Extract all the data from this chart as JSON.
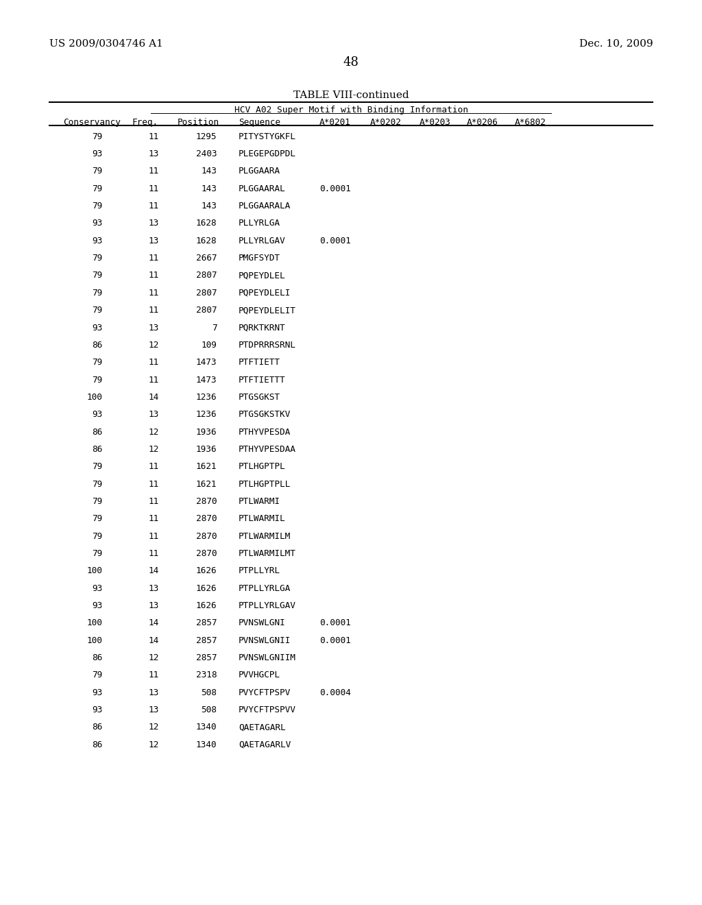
{
  "header_left": "US 2009/0304746 A1",
  "header_right": "Dec. 10, 2009",
  "page_number": "48",
  "table_title": "TABLE VIII-continued",
  "table_subtitle": "HCV A02 Super Motif with Binding Information",
  "col_headers": [
    "Conservancy",
    "Freq.",
    "Position",
    "Sequence",
    "A*0201",
    "A*0202",
    "A*0203",
    "A*0206",
    "A*6802"
  ],
  "rows": [
    [
      "79",
      "11",
      "1295",
      "PITYSTYGKFL",
      "",
      "",
      "",
      "",
      ""
    ],
    [
      "93",
      "13",
      "2403",
      "PLEGEPGDPDL",
      "",
      "",
      "",
      "",
      ""
    ],
    [
      "79",
      "11",
      "143",
      "PLGGAARA",
      "",
      "",
      "",
      "",
      ""
    ],
    [
      "79",
      "11",
      "143",
      "PLGGAARAL",
      "0.0001",
      "",
      "",
      "",
      ""
    ],
    [
      "79",
      "11",
      "143",
      "PLGGAARALA",
      "",
      "",
      "",
      "",
      ""
    ],
    [
      "93",
      "13",
      "1628",
      "PLLYRLGA",
      "",
      "",
      "",
      "",
      ""
    ],
    [
      "93",
      "13",
      "1628",
      "PLLYRLGAV",
      "0.0001",
      "",
      "",
      "",
      ""
    ],
    [
      "79",
      "11",
      "2667",
      "PMGFSYDT",
      "",
      "",
      "",
      "",
      ""
    ],
    [
      "79",
      "11",
      "2807",
      "PQPEYDLEL",
      "",
      "",
      "",
      "",
      ""
    ],
    [
      "79",
      "11",
      "2807",
      "PQPEYDLELI",
      "",
      "",
      "",
      "",
      ""
    ],
    [
      "79",
      "11",
      "2807",
      "PQPEYDLELIT",
      "",
      "",
      "",
      "",
      ""
    ],
    [
      "93",
      "13",
      "7",
      "PQRKTKRNT",
      "",
      "",
      "",
      "",
      ""
    ],
    [
      "86",
      "12",
      "109",
      "PTDPRRRSRNL",
      "",
      "",
      "",
      "",
      ""
    ],
    [
      "79",
      "11",
      "1473",
      "PTFTIETT",
      "",
      "",
      "",
      "",
      ""
    ],
    [
      "79",
      "11",
      "1473",
      "PTFTIETTT",
      "",
      "",
      "",
      "",
      ""
    ],
    [
      "100",
      "14",
      "1236",
      "PTGSGKST",
      "",
      "",
      "",
      "",
      ""
    ],
    [
      "93",
      "13",
      "1236",
      "PTGSGKSTKV",
      "",
      "",
      "",
      "",
      ""
    ],
    [
      "86",
      "12",
      "1936",
      "PTHYVPESDA",
      "",
      "",
      "",
      "",
      ""
    ],
    [
      "86",
      "12",
      "1936",
      "PTHYVPESDAA",
      "",
      "",
      "",
      "",
      ""
    ],
    [
      "79",
      "11",
      "1621",
      "PTLHGPTPL",
      "",
      "",
      "",
      "",
      ""
    ],
    [
      "79",
      "11",
      "1621",
      "PTLHGPTPLL",
      "",
      "",
      "",
      "",
      ""
    ],
    [
      "79",
      "11",
      "2870",
      "PTLWARMI",
      "",
      "",
      "",
      "",
      ""
    ],
    [
      "79",
      "11",
      "2870",
      "PTLWARMIL",
      "",
      "",
      "",
      "",
      ""
    ],
    [
      "79",
      "11",
      "2870",
      "PTLWARMILM",
      "",
      "",
      "",
      "",
      ""
    ],
    [
      "79",
      "11",
      "2870",
      "PTLWARMILMT",
      "",
      "",
      "",
      "",
      ""
    ],
    [
      "100",
      "14",
      "1626",
      "PTPLLYRL",
      "",
      "",
      "",
      "",
      ""
    ],
    [
      "93",
      "13",
      "1626",
      "PTPLLYRLGA",
      "",
      "",
      "",
      "",
      ""
    ],
    [
      "93",
      "13",
      "1626",
      "PTPLLYRLGAV",
      "",
      "",
      "",
      "",
      ""
    ],
    [
      "100",
      "14",
      "2857",
      "PVNSWLGNI",
      "0.0001",
      "",
      "",
      "",
      ""
    ],
    [
      "100",
      "14",
      "2857",
      "PVNSWLGNII",
      "0.0001",
      "",
      "",
      "",
      ""
    ],
    [
      "86",
      "12",
      "2857",
      "PVNSWLGNIIM",
      "",
      "",
      "",
      "",
      ""
    ],
    [
      "79",
      "11",
      "2318",
      "PVVHGCPL",
      "",
      "",
      "",
      "",
      ""
    ],
    [
      "93",
      "13",
      "508",
      "PVYCFTPSPV",
      "0.0004",
      "",
      "",
      "",
      ""
    ],
    [
      "93",
      "13",
      "508",
      "PVYCFTPSPVV",
      "",
      "",
      "",
      "",
      ""
    ],
    [
      "86",
      "12",
      "1340",
      "QAETAGARL",
      "",
      "",
      "",
      "",
      ""
    ],
    [
      "86",
      "12",
      "1340",
      "QAETAGARLV",
      "",
      "",
      "",
      "",
      ""
    ]
  ],
  "background_color": "#ffffff",
  "text_color": "#000000"
}
